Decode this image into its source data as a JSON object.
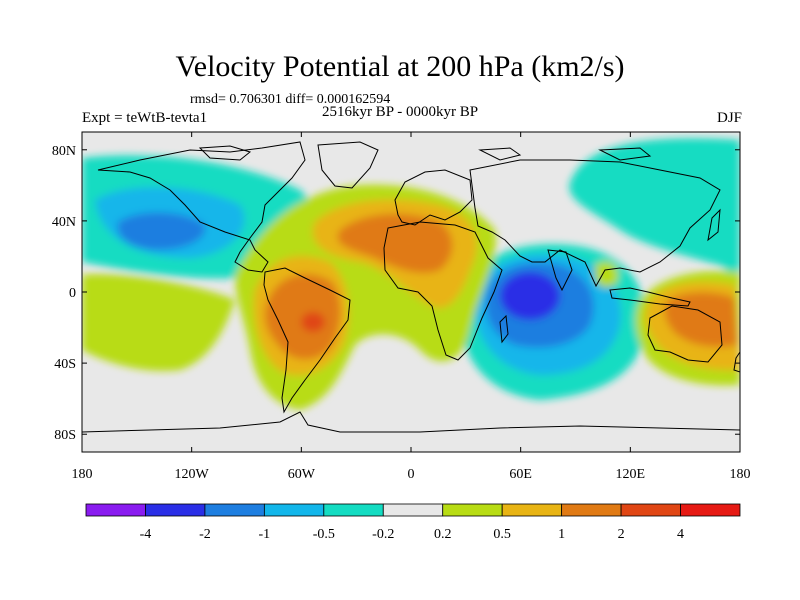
{
  "title": "Velocity Potential at 200 hPa (km2/s)",
  "subtitle": "rmsd= 0.706301 diff= 0.000162594",
  "left_label": "Expt = teWtB-tevta1",
  "center_label": "2516kyr BP - 0000kyr BP",
  "right_label": "DJF",
  "map": {
    "projection": "cylindrical-equidistant",
    "lon_range": [
      -180,
      180
    ],
    "lat_range": [
      -90,
      90
    ],
    "lon_ticks": [
      -180,
      -120,
      -60,
      0,
      60,
      120,
      180
    ],
    "lon_tick_labels": [
      "180",
      "120W",
      "60W",
      "0",
      "60E",
      "120E",
      "180"
    ],
    "lat_ticks": [
      80,
      40,
      0,
      -40,
      -80
    ],
    "lat_tick_labels": [
      "80N",
      "40N",
      "0",
      "40S",
      "80S"
    ]
  },
  "colorbar": {
    "labels": [
      "-4",
      "-2",
      "-1",
      "-0.5",
      "-0.2",
      "0.2",
      "0.5",
      "1",
      "2",
      "4"
    ],
    "colors": [
      "#8a1cf0",
      "#2a2ee6",
      "#1e7ee0",
      "#12b6ea",
      "#14dcc2",
      "#e8e8e8",
      "#b8dc14",
      "#e8b414",
      "#e07a14",
      "#e04614",
      "#e61a14"
    ]
  },
  "field_colors": {
    "background": "#e8e8e8",
    "teal": "#14dcc2",
    "cyan": "#12b6ea",
    "blue": "#1e7ee0",
    "dark_blue": "#2a2ee6",
    "lime": "#b8dc14",
    "yellow": "#e8b414",
    "orange": "#e07a14",
    "red_orange": "#e04614"
  }
}
